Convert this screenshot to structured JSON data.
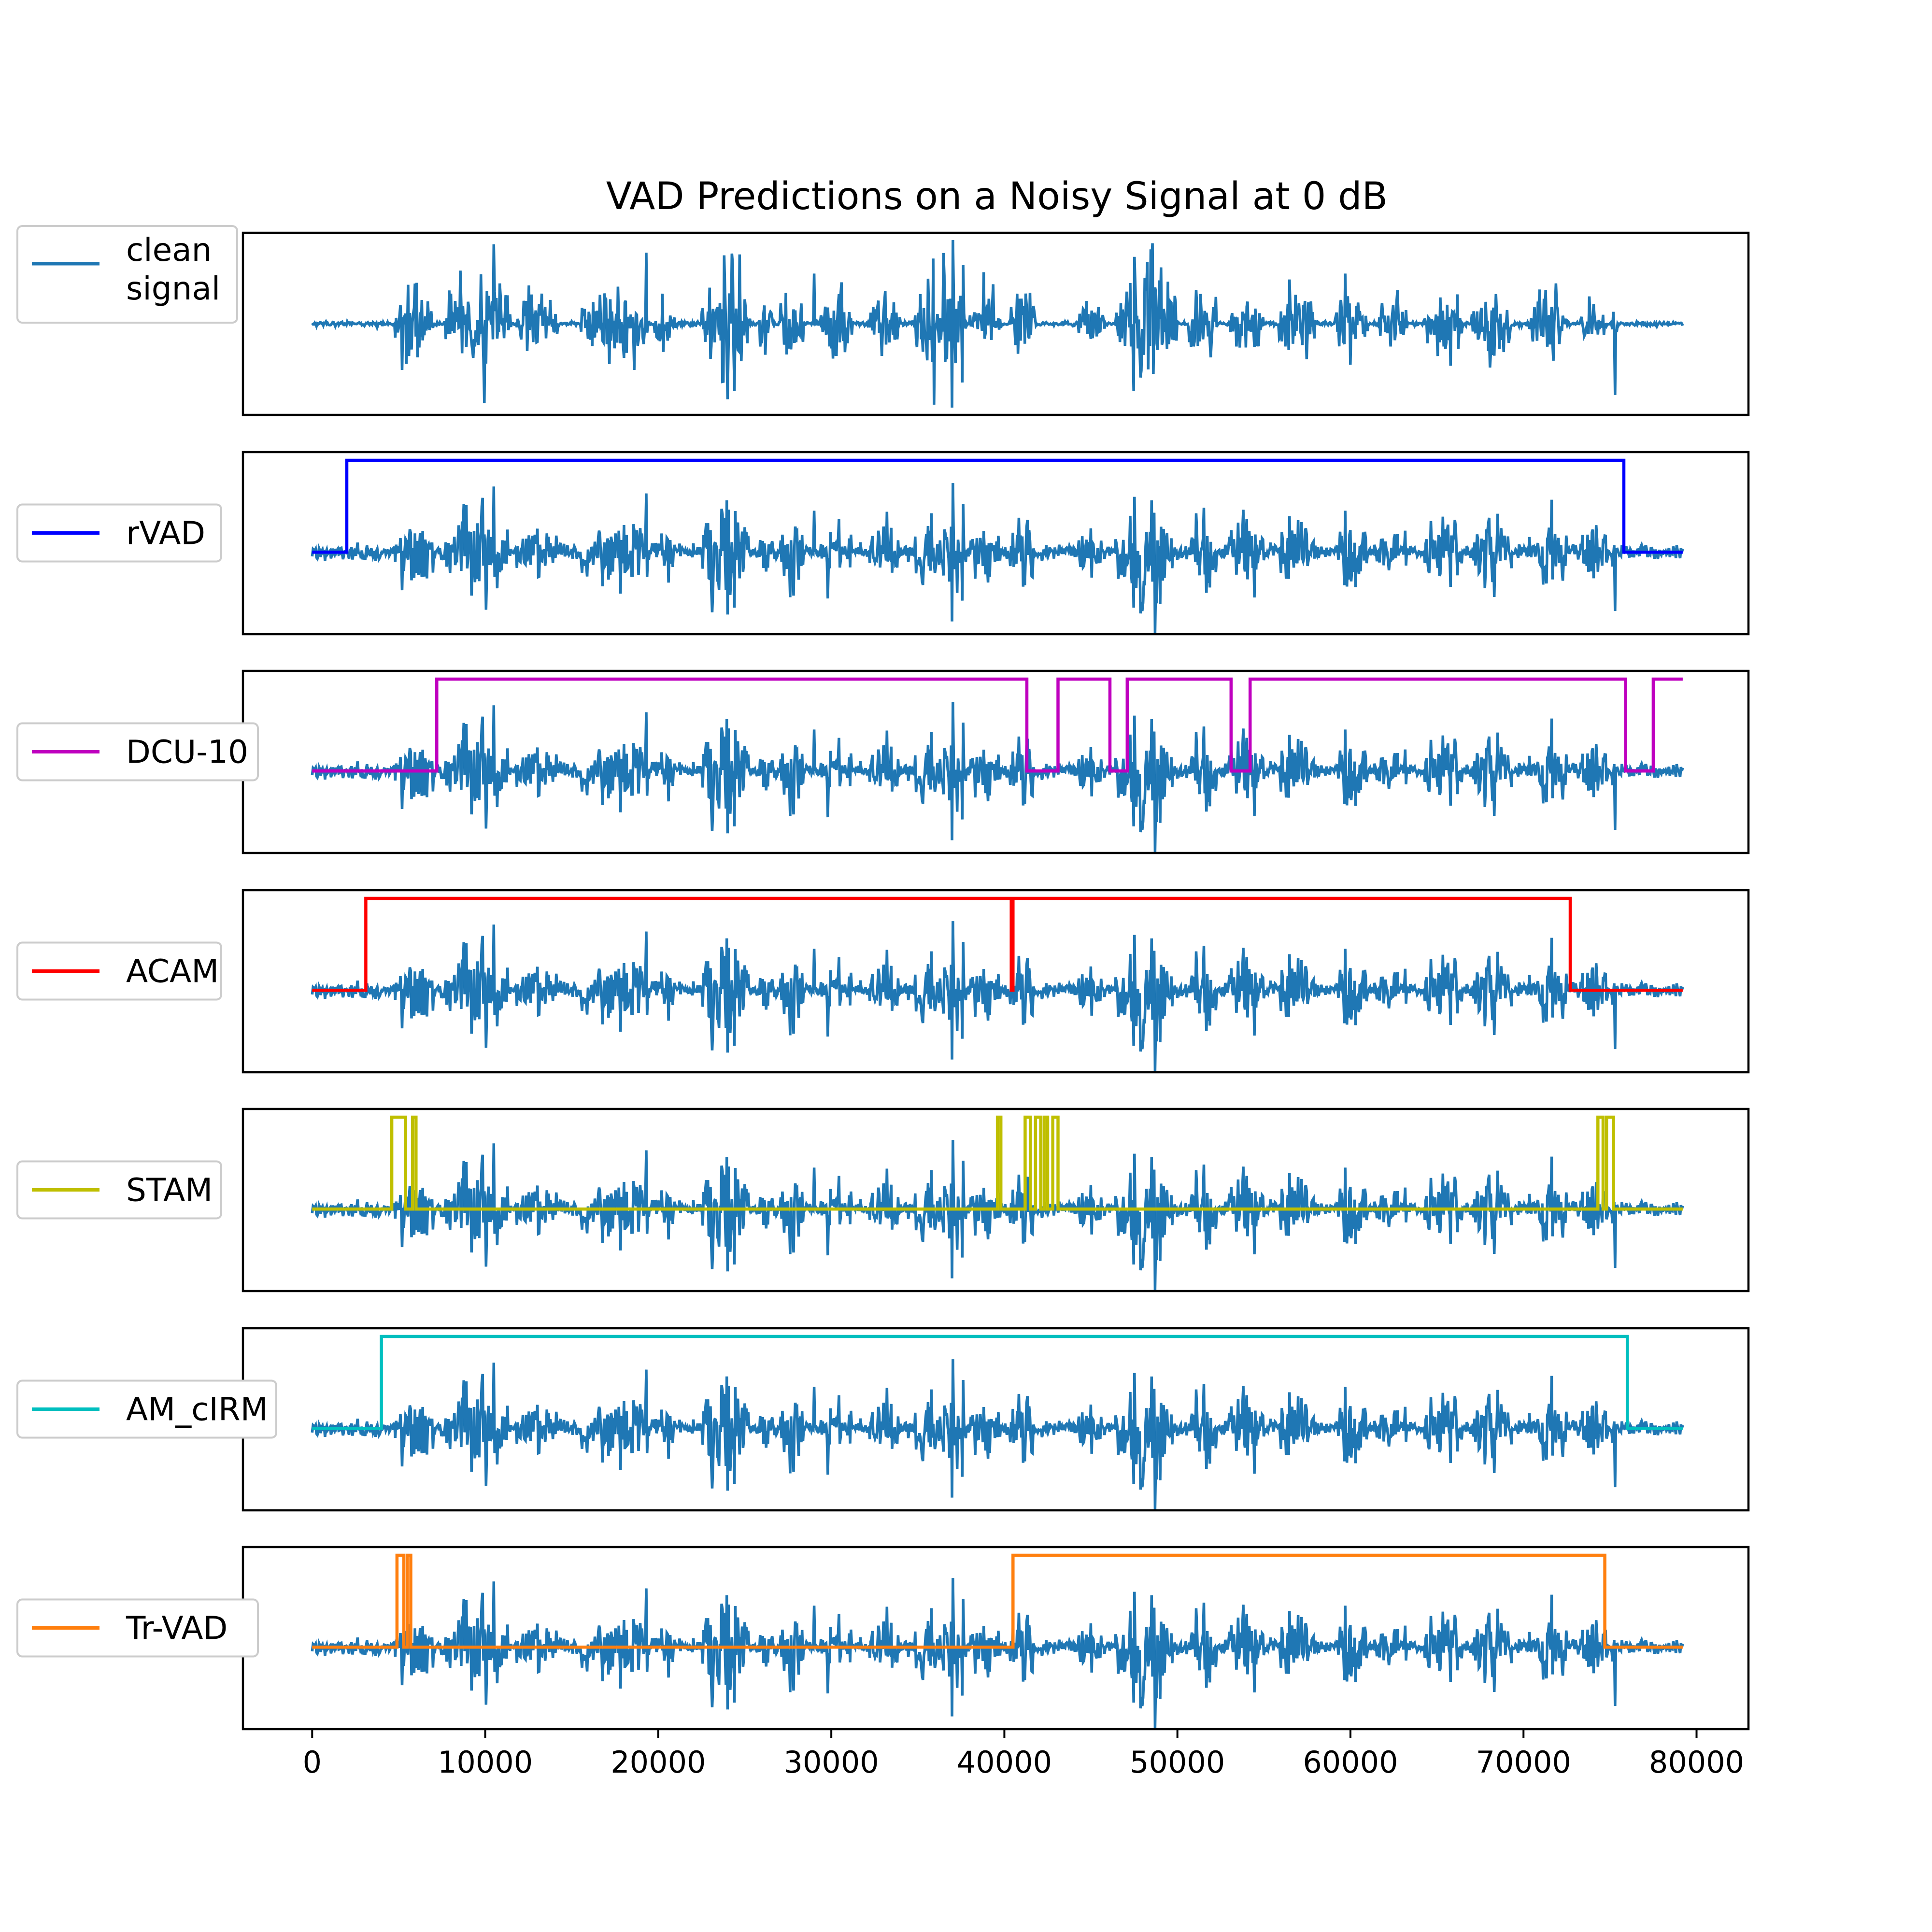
{
  "chart_data": {
    "type": "line",
    "title": "VAD Predictions on a Noisy Signal at 0 dB",
    "xlim": [
      -4000,
      83000
    ],
    "xticks": [
      0,
      10000,
      20000,
      30000,
      40000,
      50000,
      60000,
      70000,
      80000
    ],
    "signal_color": "#1f77b4",
    "signal_length": 79200,
    "panels": [
      {
        "legend": "clean\nsignal",
        "color": "#1f77b4",
        "signal": "clean",
        "vad": null
      },
      {
        "legend": "rVAD",
        "color": "#0000ff",
        "signal": "noisy",
        "vad": {
          "x": [
            0,
            2000,
            75800,
            79200
          ],
          "y": [
            0,
            1,
            0,
            0
          ]
        }
      },
      {
        "legend": "DCU-10",
        "color": "#bf00bf",
        "signal": "noisy",
        "vad": {
          "x": [
            0,
            7200,
            41300,
            43100,
            46100,
            47100,
            53100,
            54200,
            75900,
            77500,
            79200
          ],
          "y": [
            0,
            1,
            0,
            1,
            0,
            1,
            0,
            1,
            0,
            1,
            1
          ]
        }
      },
      {
        "legend": "ACAM",
        "color": "#ff0000",
        "signal": "noisy",
        "vad": {
          "x": [
            0,
            3100,
            40400,
            40500,
            72700,
            79200
          ],
          "y": [
            0,
            1,
            0,
            1,
            0,
            0
          ]
        }
      },
      {
        "legend": "STAM",
        "color": "#bfbf00",
        "signal": "noisy",
        "vad": {
          "x": [
            0,
            4600,
            5400,
            5800,
            6000,
            39600,
            39800,
            41200,
            41500,
            41800,
            42100,
            42300,
            42500,
            42800,
            43100,
            74300,
            74600,
            74800,
            75200,
            79200
          ],
          "y": [
            0,
            1,
            0,
            1,
            0,
            1,
            0,
            1,
            0,
            1,
            0,
            1,
            0,
            1,
            0,
            1,
            0,
            1,
            0,
            0
          ]
        }
      },
      {
        "legend": "AM_cIRM",
        "color": "#00bfbf",
        "signal": "noisy",
        "vad": {
          "x": [
            0,
            4000,
            76000,
            79200
          ],
          "y": [
            0,
            1,
            0,
            0
          ]
        }
      },
      {
        "legend": "Tr-VAD",
        "color": "#ff7f0e",
        "signal": "noisy",
        "vad": {
          "x": [
            0,
            4900,
            5300,
            5500,
            5700,
            40500,
            43800,
            74700,
            79200
          ],
          "y": [
            0,
            1,
            0,
            1,
            0,
            1,
            1,
            0,
            0
          ]
        }
      }
    ],
    "speech_segments": [
      [
        4800,
        7000,
        0.55
      ],
      [
        7700,
        11500,
        0.75
      ],
      [
        11800,
        14200,
        0.5
      ],
      [
        15500,
        19500,
        0.55
      ],
      [
        19800,
        21000,
        0.45
      ],
      [
        22500,
        25300,
        0.9
      ],
      [
        25800,
        26600,
        0.4
      ],
      [
        27000,
        28400,
        0.6
      ],
      [
        29400,
        31200,
        0.55
      ],
      [
        32200,
        34000,
        0.5
      ],
      [
        34700,
        37800,
        0.8
      ],
      [
        38000,
        39800,
        0.45
      ],
      [
        40300,
        41800,
        0.55
      ],
      [
        44300,
        45800,
        0.55
      ],
      [
        46400,
        50000,
        1.0
      ],
      [
        50600,
        52300,
        0.7
      ],
      [
        53000,
        55000,
        0.55
      ],
      [
        55800,
        58000,
        0.6
      ],
      [
        59100,
        61000,
        0.55
      ],
      [
        61600,
        63300,
        0.45
      ],
      [
        64300,
        66500,
        0.55
      ],
      [
        67000,
        69300,
        0.6
      ],
      [
        70300,
        72500,
        0.55
      ],
      [
        73300,
        74800,
        0.4
      ],
      [
        75100,
        75400,
        0.35
      ]
    ],
    "spikes": [
      [
        5200,
        0.55
      ],
      [
        10500,
        0.95
      ],
      [
        19300,
        0.85
      ],
      [
        24000,
        0.9
      ],
      [
        24400,
        0.8
      ],
      [
        29000,
        0.6
      ],
      [
        37000,
        1.0
      ],
      [
        37600,
        0.7
      ],
      [
        47500,
        0.8
      ],
      [
        48500,
        0.75
      ],
      [
        59700,
        0.6
      ],
      [
        65800,
        0.5
      ],
      [
        75300,
        0.85
      ]
    ]
  }
}
